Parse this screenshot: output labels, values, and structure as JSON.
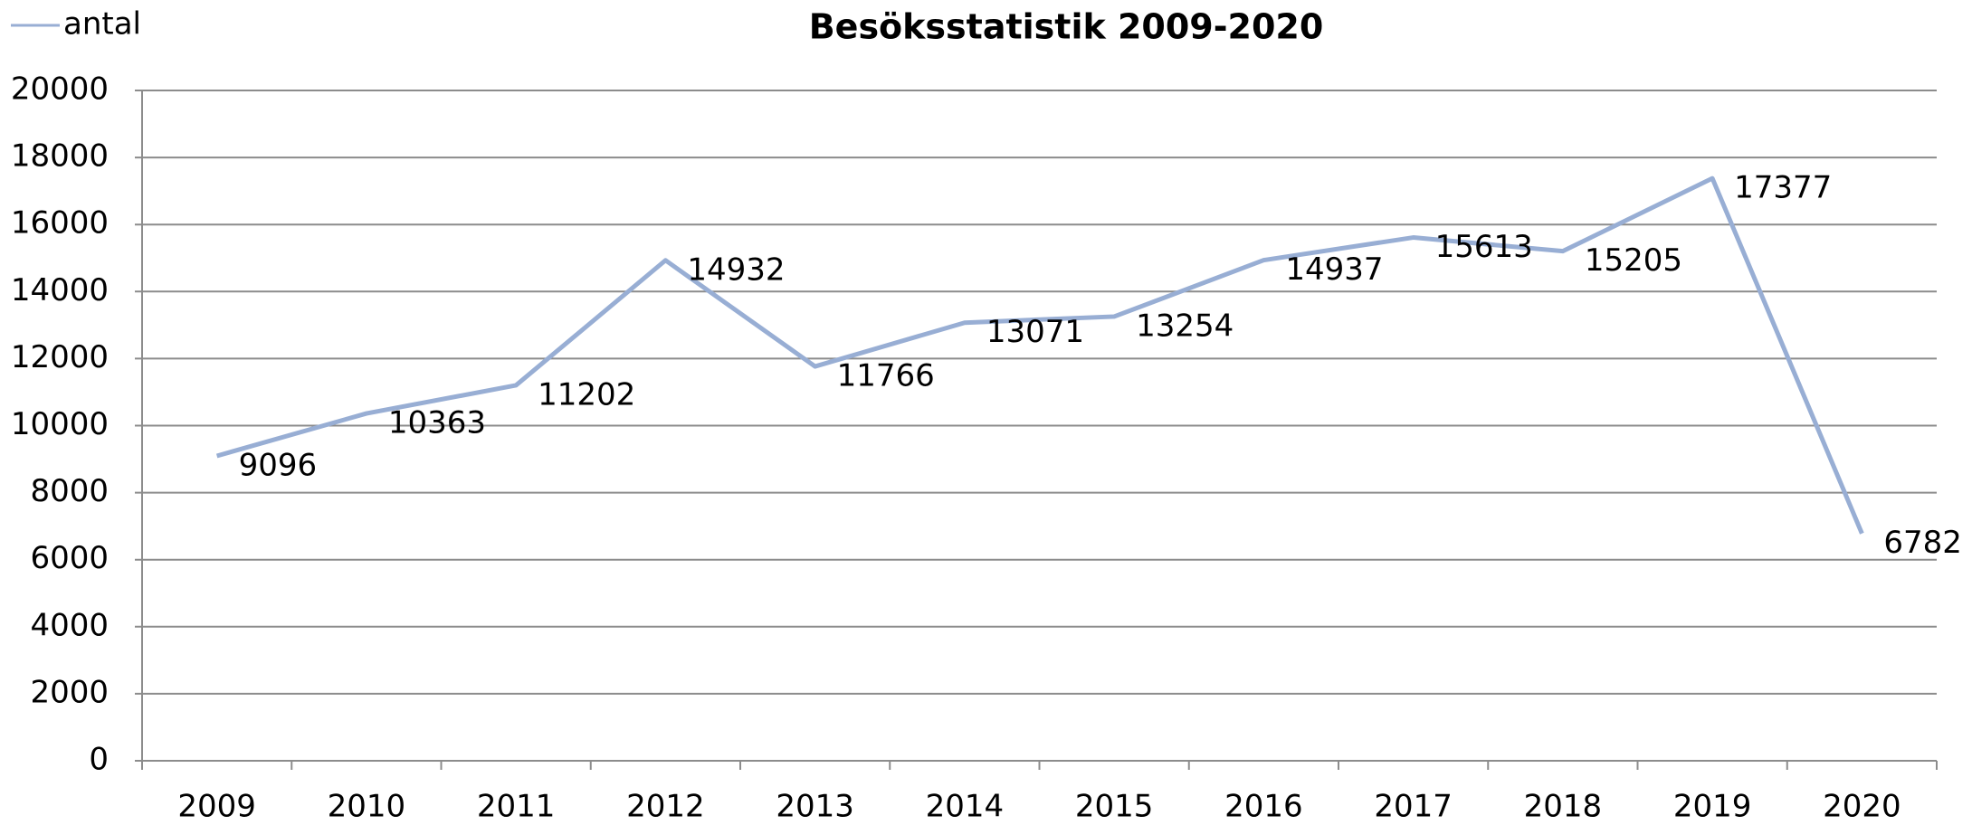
{
  "chart_data": {
    "type": "line",
    "title": "Besöksstatistik 2009-2020",
    "categories": [
      "2009",
      "2010",
      "2011",
      "2012",
      "2013",
      "2014",
      "2015",
      "2016",
      "2017",
      "2018",
      "2019",
      "2020"
    ],
    "series": [
      {
        "name": "antal",
        "color": "#98aed4",
        "values": [
          9096,
          10363,
          11202,
          14932,
          11766,
          13071,
          13254,
          14937,
          15613,
          15205,
          17377,
          6782
        ]
      }
    ],
    "ylim": [
      0,
      20000
    ],
    "yticks": [
      0,
      2000,
      4000,
      6000,
      8000,
      10000,
      12000,
      14000,
      16000,
      18000,
      20000
    ],
    "grid": true,
    "legend": "top-left"
  }
}
